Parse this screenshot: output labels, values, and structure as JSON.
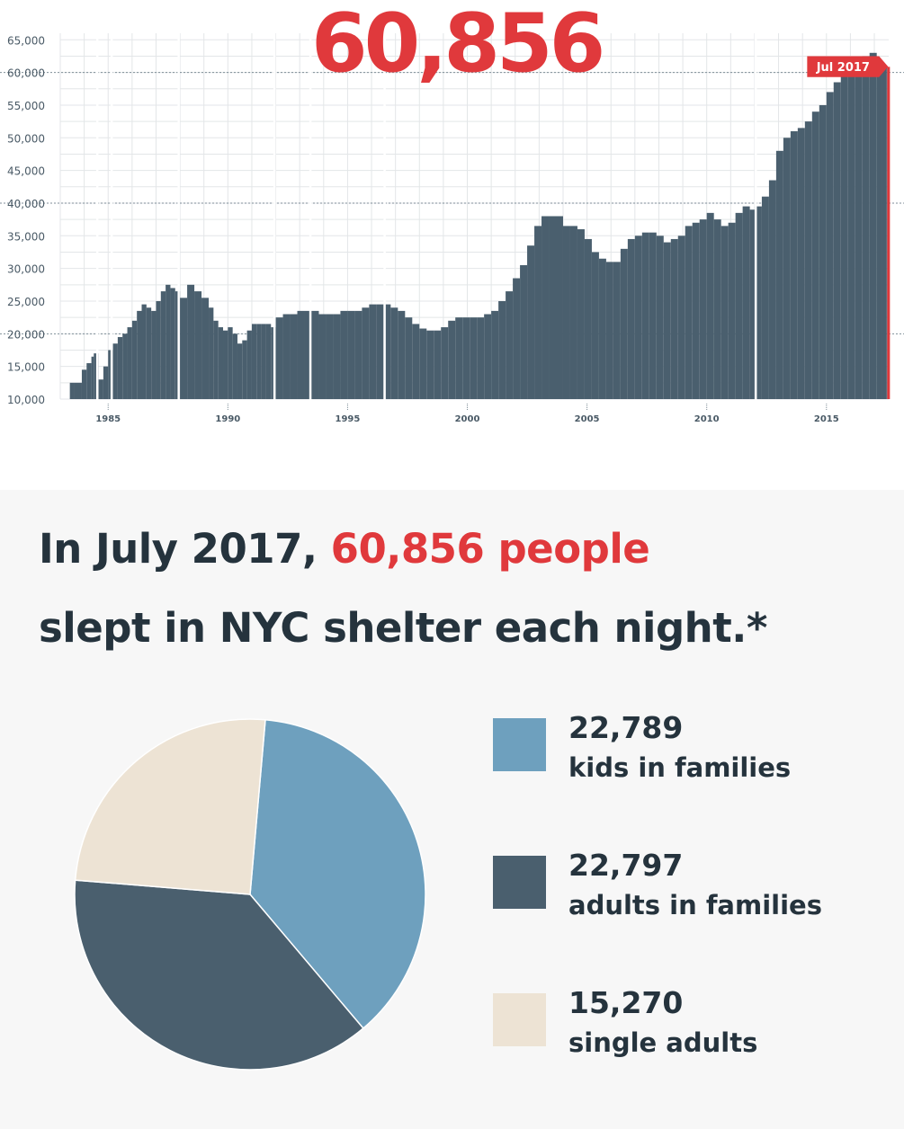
{
  "highlight": {
    "value": "60,856",
    "color": "#e0393c"
  },
  "headline": {
    "prefix": "In July 2017, ",
    "emphasis": "60,856 people",
    "rest": "slept in NYC shelter each night.*"
  },
  "colors": {
    "area": "#4a5f6e",
    "accent": "#e0393c",
    "grid": "#e3e6e8",
    "text": "#25333d",
    "kids": "#6ea0be",
    "adults": "#4a5f6e",
    "singles": "#ede3d4"
  },
  "chart_data": [
    {
      "type": "area",
      "title": "",
      "xlabel": "",
      "ylabel": "",
      "xlim": [
        1983.0,
        2017.6
      ],
      "ylim": [
        10000,
        66000
      ],
      "yticks": [
        10000,
        15000,
        20000,
        25000,
        30000,
        35000,
        40000,
        45000,
        50000,
        55000,
        60000,
        65000
      ],
      "ytick_labels": [
        "10,000",
        "15,000",
        "20,000",
        "25,000",
        "30,000",
        "35,000",
        "40,000",
        "45,000",
        "50,000",
        "55,000",
        "60,000",
        "65,000"
      ],
      "xticks": [
        1985,
        1990,
        1995,
        2000,
        2005,
        2010,
        2015
      ],
      "xtick_labels": [
        "1985",
        "1990",
        "1995",
        "2000",
        "2005",
        "2010",
        "2015"
      ],
      "reference_lines": [
        20000,
        40000,
        60000
      ],
      "grid": true,
      "annotation": {
        "label": "Jul 2017",
        "x": 2017.5,
        "y": 60856
      },
      "series": [
        {
          "x": [
            1983.4,
            1983.6,
            1983.9,
            1984.1,
            1984.3,
            1984.4,
            1984.6,
            1984.8,
            1985.0,
            1985.2,
            1985.4,
            1985.6,
            1985.8,
            1986.0,
            1986.2,
            1986.4,
            1986.6,
            1986.8,
            1987.0,
            1987.2,
            1987.4,
            1987.6,
            1987.8,
            1988.0,
            1988.3,
            1988.6,
            1988.9,
            1989.2,
            1989.4,
            1989.6,
            1989.8,
            1990.0,
            1990.2,
            1990.4,
            1990.6,
            1990.8,
            1991.0,
            1991.2,
            1991.4,
            1991.6,
            1991.8,
            1992.0,
            1992.3,
            1992.6,
            1992.9,
            1993.2,
            1993.5,
            1993.8,
            1994.1,
            1994.4,
            1994.7,
            1995.0,
            1995.3,
            1995.6,
            1995.9,
            1996.2,
            1996.5,
            1996.8,
            1997.1,
            1997.4,
            1997.7,
            1998.0,
            1998.3,
            1998.6,
            1998.9,
            1999.2,
            1999.5,
            1999.8,
            2000.1,
            2000.4,
            2000.7,
            2001.0,
            2001.3,
            2001.6,
            2001.9,
            2002.2,
            2002.5,
            2002.8,
            2003.1,
            2003.4,
            2003.7,
            2004.0,
            2004.3,
            2004.6,
            2004.9,
            2005.2,
            2005.5,
            2005.8,
            2006.1,
            2006.4,
            2006.7,
            2007.0,
            2007.3,
            2007.6,
            2007.9,
            2008.2,
            2008.5,
            2008.8,
            2009.1,
            2009.4,
            2009.7,
            2010.0,
            2010.3,
            2010.6,
            2010.9,
            2011.2,
            2011.5,
            2011.8,
            2012.0,
            2012.3,
            2012.6,
            2012.9,
            2013.2,
            2013.5,
            2013.8,
            2014.1,
            2014.4,
            2014.7,
            2015.0,
            2015.3,
            2015.6,
            2015.9,
            2016.2,
            2016.5,
            2016.8,
            2017.1,
            2017.3,
            2017.5
          ],
          "y": [
            12500,
            12500,
            14500,
            15500,
            16500,
            17000,
            13000,
            15000,
            17500,
            18500,
            19500,
            20000,
            21000,
            22000,
            23500,
            24500,
            24000,
            23500,
            25000,
            26500,
            27500,
            27000,
            26500,
            25500,
            27500,
            26500,
            25500,
            24000,
            22000,
            21000,
            20500,
            21000,
            20000,
            18500,
            19000,
            20500,
            21500,
            21500,
            21500,
            21500,
            21000,
            22500,
            23000,
            23000,
            23500,
            23500,
            23500,
            23000,
            23000,
            23000,
            23500,
            23500,
            23500,
            24000,
            24500,
            24500,
            24500,
            24000,
            23500,
            22500,
            21500,
            20800,
            20500,
            20500,
            21000,
            22000,
            22500,
            22500,
            22500,
            22500,
            23000,
            23500,
            25000,
            26500,
            28500,
            30500,
            33500,
            36500,
            38000,
            38000,
            38000,
            36500,
            36500,
            36000,
            34500,
            32500,
            31500,
            31000,
            31000,
            33000,
            34500,
            35000,
            35500,
            35500,
            35000,
            34000,
            34500,
            35000,
            36500,
            37000,
            37500,
            38500,
            37500,
            36500,
            37000,
            38500,
            39500,
            39000,
            39500,
            41000,
            43500,
            48000,
            50000,
            51000,
            51500,
            52500,
            54000,
            55000,
            57000,
            58500,
            60000,
            61000,
            61500,
            62500,
            63000,
            61500,
            61000,
            60856
          ],
          "breaks": [
            1984.5,
            1985.1,
            1987.9,
            1991.9,
            1993.4,
            1996.5,
            2012.0
          ]
        }
      ]
    },
    {
      "type": "pie",
      "title": "",
      "slices": [
        {
          "name": "kids in families",
          "label": "22,789",
          "value": 22789,
          "color": "#6ea0be"
        },
        {
          "name": "adults in families",
          "label": "22,797",
          "value": 22797,
          "color": "#4a5f6e"
        },
        {
          "name": "single adults",
          "label": "15,270",
          "value": 15270,
          "color": "#ede3d4"
        }
      ],
      "start_angle_deg": 5,
      "direction": "clockwise",
      "legend_placement": "right"
    }
  ]
}
